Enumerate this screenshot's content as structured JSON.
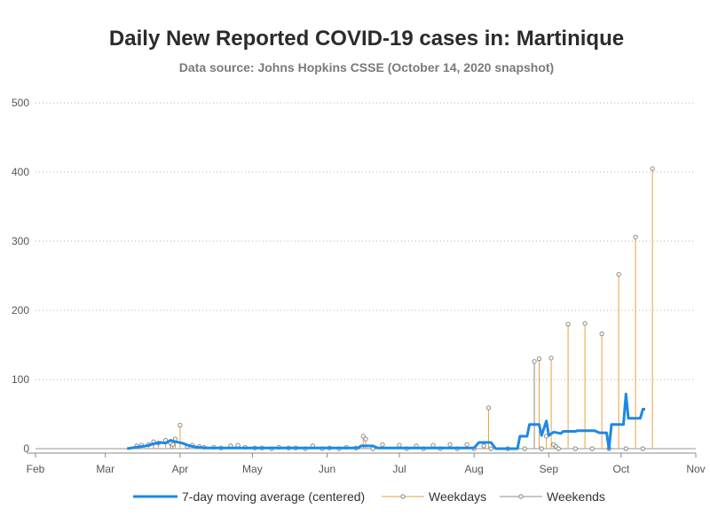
{
  "chart_data": {
    "type": "line",
    "title": "Daily New Reported COVID-19 cases in: Martinique",
    "subtitle": "Data source: Johns Hopkins CSSE (October 14, 2020 snapshot)",
    "xlabel": "",
    "ylabel": "",
    "x_ticks": [
      "Feb",
      "Mar",
      "Apr",
      "May",
      "Jun",
      "Jul",
      "Aug",
      "Sep",
      "Oct",
      "Nov"
    ],
    "y_ticks": [
      0,
      100,
      200,
      300,
      400,
      500
    ],
    "ylim": [
      0,
      500
    ],
    "xlim": [
      "2020-02-01",
      "2020-11-01"
    ],
    "grid": "horizontal dotted",
    "legend_position": "bottom",
    "series": [
      {
        "name": "7-day moving average (centered)",
        "style": "line",
        "color": "#1e88e5",
        "points": [
          [
            "2020-03-10",
            0
          ],
          [
            "2020-03-14",
            2
          ],
          [
            "2020-03-18",
            4
          ],
          [
            "2020-03-21",
            7
          ],
          [
            "2020-03-24",
            9
          ],
          [
            "2020-03-26",
            8
          ],
          [
            "2020-03-28",
            12
          ],
          [
            "2020-03-30",
            10
          ],
          [
            "2020-04-02",
            8
          ],
          [
            "2020-04-05",
            4
          ],
          [
            "2020-04-08",
            2
          ],
          [
            "2020-04-12",
            1
          ],
          [
            "2020-04-20",
            1
          ],
          [
            "2020-05-01",
            1
          ],
          [
            "2020-05-10",
            1
          ],
          [
            "2020-05-20",
            1
          ],
          [
            "2020-06-01",
            1
          ],
          [
            "2020-06-14",
            1
          ],
          [
            "2020-06-15",
            4
          ],
          [
            "2020-06-20",
            4
          ],
          [
            "2020-06-22",
            1
          ],
          [
            "2020-07-10",
            1
          ],
          [
            "2020-08-01",
            1
          ],
          [
            "2020-08-03",
            9
          ],
          [
            "2020-08-08",
            9
          ],
          [
            "2020-08-10",
            0
          ],
          [
            "2020-08-19",
            0
          ],
          [
            "2020-08-20",
            18
          ],
          [
            "2020-08-23",
            18
          ],
          [
            "2020-08-24",
            35
          ],
          [
            "2020-08-28",
            35
          ],
          [
            "2020-08-29",
            19
          ],
          [
            "2020-08-31",
            40
          ],
          [
            "2020-09-01",
            19
          ],
          [
            "2020-09-03",
            24
          ],
          [
            "2020-09-06",
            22
          ],
          [
            "2020-09-07",
            25
          ],
          [
            "2020-09-12",
            25
          ],
          [
            "2020-09-13",
            26
          ],
          [
            "2020-09-20",
            26
          ],
          [
            "2020-09-22",
            23
          ],
          [
            "2020-09-25",
            23
          ],
          [
            "2020-09-26",
            0
          ],
          [
            "2020-09-27",
            35
          ],
          [
            "2020-10-02",
            35
          ],
          [
            "2020-10-03",
            79
          ],
          [
            "2020-10-04",
            44
          ],
          [
            "2020-10-09",
            44
          ],
          [
            "2020-10-10",
            57
          ],
          [
            "2020-10-11",
            57
          ]
        ]
      },
      {
        "name": "Weekdays",
        "style": "needle",
        "color": "#e8a33d",
        "points": [
          [
            "2020-03-16",
            5
          ],
          [
            "2020-03-19",
            6
          ],
          [
            "2020-03-23",
            8
          ],
          [
            "2020-03-26",
            12
          ],
          [
            "2020-03-30",
            14
          ],
          [
            "2020-04-01",
            34
          ],
          [
            "2020-04-06",
            5
          ],
          [
            "2020-04-09",
            3
          ],
          [
            "2020-04-15",
            2
          ],
          [
            "2020-04-22",
            4
          ],
          [
            "2020-04-28",
            2
          ],
          [
            "2020-05-05",
            1
          ],
          [
            "2020-05-12",
            2
          ],
          [
            "2020-05-19",
            1
          ],
          [
            "2020-05-26",
            4
          ],
          [
            "2020-06-02",
            1
          ],
          [
            "2020-06-09",
            2
          ],
          [
            "2020-06-16",
            18
          ],
          [
            "2020-06-17",
            14
          ],
          [
            "2020-06-24",
            6
          ],
          [
            "2020-07-01",
            5
          ],
          [
            "2020-07-08",
            4
          ],
          [
            "2020-07-15",
            5
          ],
          [
            "2020-07-22",
            6
          ],
          [
            "2020-07-29",
            6
          ],
          [
            "2020-08-05",
            4
          ],
          [
            "2020-08-07",
            59
          ],
          [
            "2020-08-28",
            130
          ],
          [
            "2020-08-31",
            18
          ],
          [
            "2020-09-02",
            131
          ],
          [
            "2020-09-03",
            6
          ],
          [
            "2020-09-04",
            3
          ],
          [
            "2020-09-09",
            180
          ],
          [
            "2020-09-16",
            181
          ],
          [
            "2020-09-23",
            166
          ],
          [
            "2020-09-30",
            252
          ],
          [
            "2020-10-07",
            306
          ],
          [
            "2020-10-14",
            405
          ]
        ]
      },
      {
        "name": "Weekends",
        "style": "needle",
        "color": "#8c8c8c",
        "points": [
          [
            "2020-03-14",
            4
          ],
          [
            "2020-03-21",
            10
          ],
          [
            "2020-03-28",
            8
          ],
          [
            "2020-03-29",
            6
          ],
          [
            "2020-04-04",
            3
          ],
          [
            "2020-04-11",
            2
          ],
          [
            "2020-04-18",
            1
          ],
          [
            "2020-04-25",
            5
          ],
          [
            "2020-05-02",
            1
          ],
          [
            "2020-05-09",
            0
          ],
          [
            "2020-05-16",
            1
          ],
          [
            "2020-05-23",
            0
          ],
          [
            "2020-05-30",
            0
          ],
          [
            "2020-06-06",
            0
          ],
          [
            "2020-06-13",
            1
          ],
          [
            "2020-06-20",
            0
          ],
          [
            "2020-07-04",
            0
          ],
          [
            "2020-07-11",
            0
          ],
          [
            "2020-07-18",
            0
          ],
          [
            "2020-07-25",
            0
          ],
          [
            "2020-08-01",
            0
          ],
          [
            "2020-08-08",
            0
          ],
          [
            "2020-08-15",
            0
          ],
          [
            "2020-08-22",
            0
          ],
          [
            "2020-08-26",
            126
          ],
          [
            "2020-08-29",
            0
          ],
          [
            "2020-09-05",
            0
          ],
          [
            "2020-09-12",
            0
          ],
          [
            "2020-09-19",
            0
          ],
          [
            "2020-09-26",
            0
          ],
          [
            "2020-10-03",
            0
          ],
          [
            "2020-10-10",
            0
          ]
        ]
      }
    ]
  }
}
